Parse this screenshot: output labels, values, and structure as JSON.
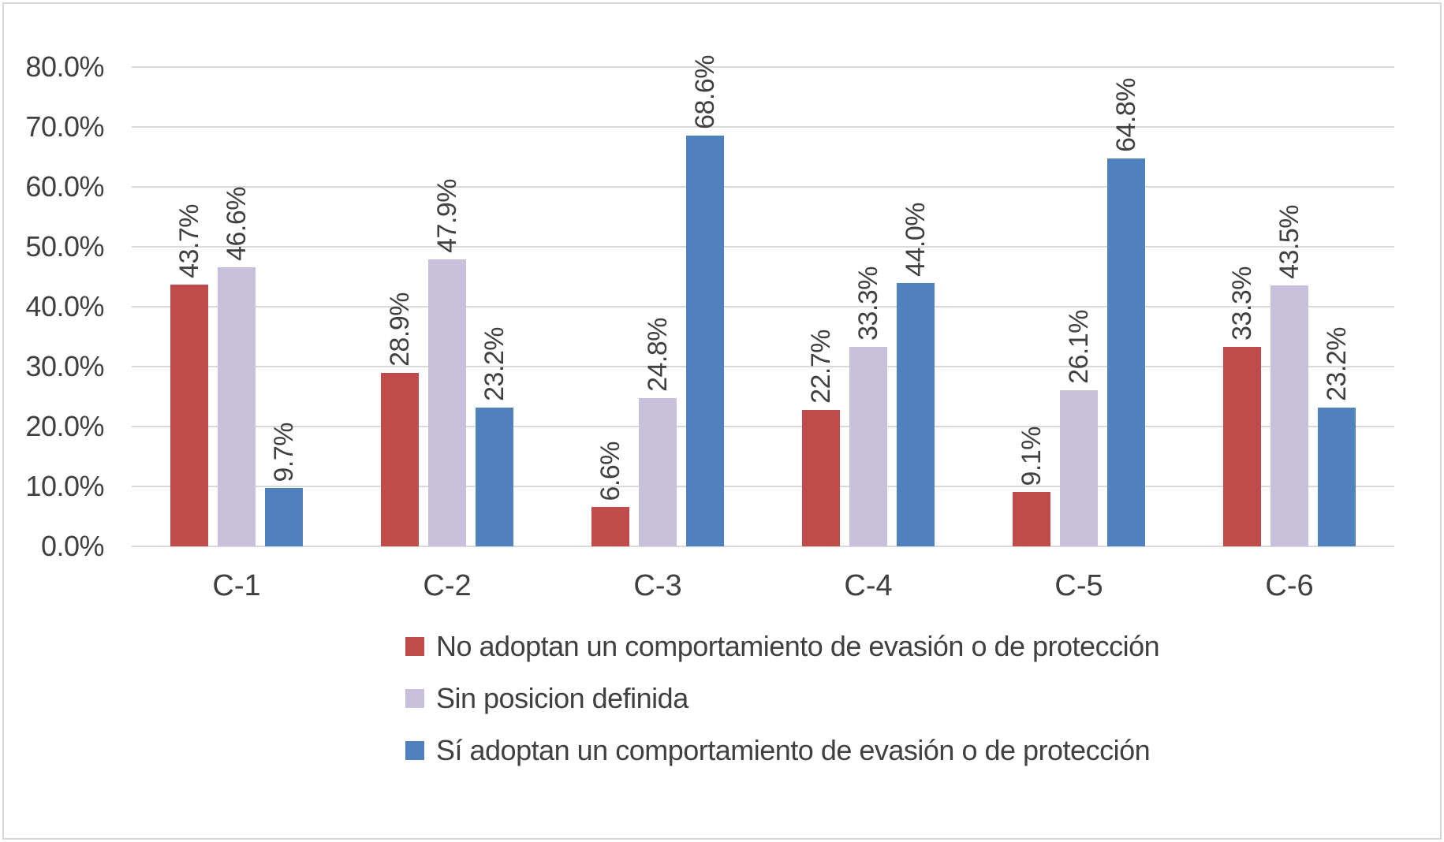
{
  "chart_data": {
    "type": "bar",
    "title": "",
    "xlabel": "",
    "ylabel": "",
    "categories": [
      "C-1",
      "C-2",
      "C-3",
      "C-4",
      "C-5",
      "C-6"
    ],
    "series": [
      {
        "name": "No adoptan un comportamiento de evasión o de protección",
        "color": "#bf4c4b",
        "values": [
          43.7,
          28.9,
          6.6,
          22.7,
          9.1,
          33.3
        ],
        "labels": [
          "43.7%",
          "28.9%",
          "6.6%",
          "22.7%",
          "9.1%",
          "33.3%"
        ]
      },
      {
        "name": "Sin posicion definida",
        "color": "#c9c0dc",
        "values": [
          46.6,
          47.9,
          24.8,
          33.3,
          26.1,
          43.5
        ],
        "labels": [
          "46.6%",
          "47.9%",
          "24.8%",
          "33.3%",
          "26.1%",
          "43.5%"
        ]
      },
      {
        "name": "Sí adoptan un comportamiento de evasión o de protección",
        "color": "#5081be",
        "values": [
          9.7,
          23.2,
          68.6,
          44.0,
          64.8,
          23.2
        ],
        "labels": [
          "9.7%",
          "23.2%",
          "68.6%",
          "44.0%",
          "64.8%",
          "23.2%"
        ]
      }
    ],
    "ylim": [
      0,
      80
    ],
    "ytick_step": 10,
    "ytick_labels": [
      "80.0%",
      "70.0%",
      "60.0%",
      "50.0%",
      "40.0%",
      "30.0%",
      "20.0%",
      "10.0%",
      "0.0%"
    ],
    "grid": true,
    "data_label_rotation": "vertical-bottom-to-top",
    "legend_position": "bottom-left",
    "colors": {
      "background": "#ffffff",
      "border": "#d6d6d6",
      "gridline": "#d9d9d9",
      "text": "#404040"
    }
  }
}
